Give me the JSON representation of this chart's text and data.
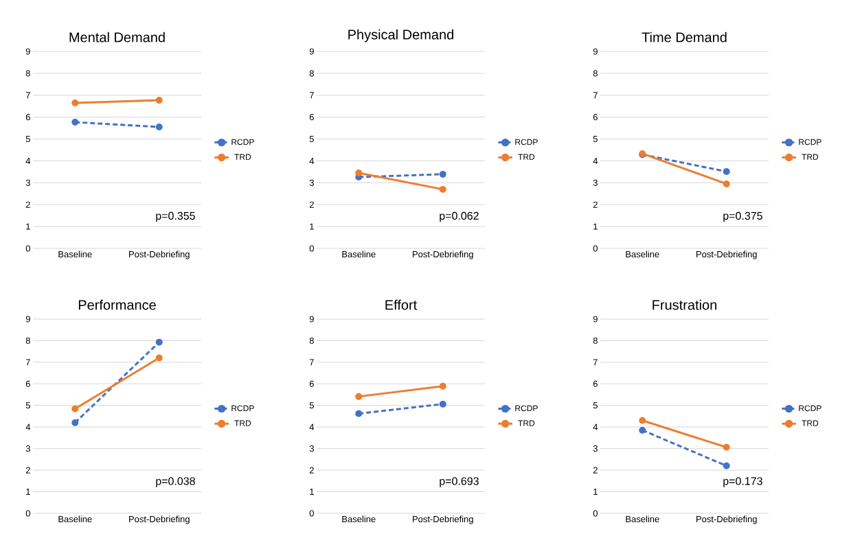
{
  "chart_data": [
    {
      "type": "line",
      "title": "Mental Demand",
      "categories": [
        "Baseline",
        "Post-Debriefing"
      ],
      "series": [
        {
          "name": "RCDP",
          "color": "#4472c4",
          "line_style": "dashed",
          "values": [
            5.77,
            5.55
          ]
        },
        {
          "name": "TRD",
          "color": "#ed7d31",
          "line_style": "solid",
          "values": [
            6.65,
            6.77
          ]
        }
      ],
      "ylim": [
        0,
        9
      ],
      "yticks": [
        0,
        1,
        2,
        3,
        4,
        5,
        6,
        7,
        8,
        9
      ],
      "grid": "y",
      "legend": "right",
      "marker": "circle",
      "annotations": [
        "p=0.355"
      ]
    },
    {
      "type": "line",
      "title": "Physical Demand",
      "categories": [
        "Baseline",
        "Post-Debriefing"
      ],
      "series": [
        {
          "name": "RCDP",
          "color": "#4472c4",
          "line_style": "dashed",
          "values": [
            3.26,
            3.39
          ]
        },
        {
          "name": "TRD",
          "color": "#ed7d31",
          "line_style": "solid",
          "values": [
            3.45,
            2.7
          ]
        }
      ],
      "ylim": [
        0,
        9
      ],
      "yticks": [
        0,
        1,
        2,
        3,
        4,
        5,
        6,
        7,
        8,
        9
      ],
      "grid": "y",
      "legend": "right",
      "marker": "circle",
      "annotations": [
        "p=0.062"
      ]
    },
    {
      "type": "line",
      "title": "Time Demand",
      "categories": [
        "Baseline",
        "Post-Debriefing"
      ],
      "series": [
        {
          "name": "RCDP",
          "color": "#4472c4",
          "line_style": "dashed",
          "values": [
            4.29,
            3.51
          ]
        },
        {
          "name": "TRD",
          "color": "#ed7d31",
          "line_style": "solid",
          "values": [
            4.33,
            2.95
          ]
        }
      ],
      "ylim": [
        0,
        9
      ],
      "yticks": [
        0,
        1,
        2,
        3,
        4,
        5,
        6,
        7,
        8,
        9
      ],
      "grid": "y",
      "legend": "right",
      "marker": "circle",
      "annotations": [
        "p=0.375"
      ]
    },
    {
      "type": "line",
      "title": "Performance",
      "categories": [
        "Baseline",
        "Post-Debriefing"
      ],
      "series": [
        {
          "name": "RCDP",
          "color": "#4472c4",
          "line_style": "dashed",
          "values": [
            4.2,
            7.93
          ]
        },
        {
          "name": "TRD",
          "color": "#ed7d31",
          "line_style": "solid",
          "values": [
            4.84,
            7.2
          ]
        }
      ],
      "ylim": [
        0,
        9
      ],
      "yticks": [
        0,
        1,
        2,
        3,
        4,
        5,
        6,
        7,
        8,
        9
      ],
      "grid": "y",
      "legend": "right",
      "marker": "circle",
      "annotations": [
        "p=0.038"
      ]
    },
    {
      "type": "line",
      "title": "Effort",
      "categories": [
        "Baseline",
        "Post-Debriefing"
      ],
      "series": [
        {
          "name": "RCDP",
          "color": "#4472c4",
          "line_style": "dashed",
          "values": [
            4.62,
            5.06
          ]
        },
        {
          "name": "TRD",
          "color": "#ed7d31",
          "line_style": "solid",
          "values": [
            5.41,
            5.89
          ]
        }
      ],
      "ylim": [
        0,
        9
      ],
      "yticks": [
        0,
        1,
        2,
        3,
        4,
        5,
        6,
        7,
        8,
        9
      ],
      "grid": "y",
      "legend": "right",
      "marker": "circle",
      "annotations": [
        "p=0.693"
      ]
    },
    {
      "type": "line",
      "title": "Frustration",
      "categories": [
        "Baseline",
        "Post-Debriefing"
      ],
      "series": [
        {
          "name": "RCDP",
          "color": "#4472c4",
          "line_style": "dashed",
          "values": [
            3.85,
            2.2
          ]
        },
        {
          "name": "TRD",
          "color": "#ed7d31",
          "line_style": "solid",
          "values": [
            4.3,
            3.06
          ]
        }
      ],
      "ylim": [
        0,
        9
      ],
      "yticks": [
        0,
        1,
        2,
        3,
        4,
        5,
        6,
        7,
        8,
        9
      ],
      "grid": "y",
      "legend": "right",
      "marker": "circle",
      "annotations": [
        "p=0.173"
      ]
    }
  ]
}
